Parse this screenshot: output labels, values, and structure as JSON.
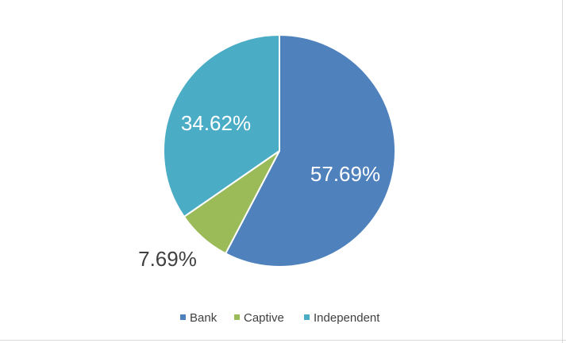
{
  "chart_data": {
    "type": "pie",
    "title": "",
    "categories": [
      "Bank",
      "Captive",
      "Independent"
    ],
    "values": [
      57.69,
      7.69,
      34.62
    ],
    "labels": [
      "57.69%",
      "7.69%",
      "34.62%"
    ],
    "colors": [
      "#4f81bd",
      "#9bbb59",
      "#4bacc6"
    ],
    "label_colors": [
      "#ffffff",
      "#404040",
      "#ffffff"
    ],
    "start_angle_deg": 0,
    "direction": "clockwise",
    "legend_position": "bottom"
  }
}
